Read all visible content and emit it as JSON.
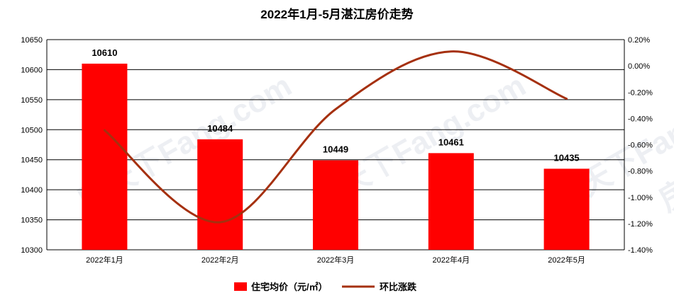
{
  "chart_data": {
    "type": "bar",
    "title": "2022年1月-5月湛江房价走势",
    "categories": [
      "2022年1月",
      "2022年2月",
      "2022年3月",
      "2022年4月",
      "2022年5月"
    ],
    "series": [
      {
        "name": "住宅均价（元/㎡）",
        "type": "bar",
        "axis": "left",
        "color": "#ff0000",
        "values": [
          10610,
          10484,
          10449,
          10461,
          10435
        ]
      },
      {
        "name": "环比涨跌",
        "type": "line",
        "axis": "right",
        "color": "#a5300f",
        "values": [
          -0.49,
          -1.19,
          -0.33,
          0.11,
          -0.25
        ]
      }
    ],
    "y_left": {
      "min": 10300,
      "max": 10650,
      "step": 50,
      "ticks": [
        "10300",
        "10350",
        "10400",
        "10450",
        "10500",
        "10550",
        "10600",
        "10650"
      ]
    },
    "y_right": {
      "min": -1.4,
      "max": 0.2,
      "step": 0.2,
      "ticks": [
        "-1.40%",
        "-1.20%",
        "-1.00%",
        "-0.80%",
        "-0.60%",
        "-0.40%",
        "-0.20%",
        "0.00%",
        "0.20%"
      ]
    },
    "grid": true,
    "legend_position": "bottom",
    "data_labels": [
      "10610",
      "10484",
      "10449",
      "10461",
      "10435"
    ],
    "watermark": "房天下Fang.com"
  }
}
